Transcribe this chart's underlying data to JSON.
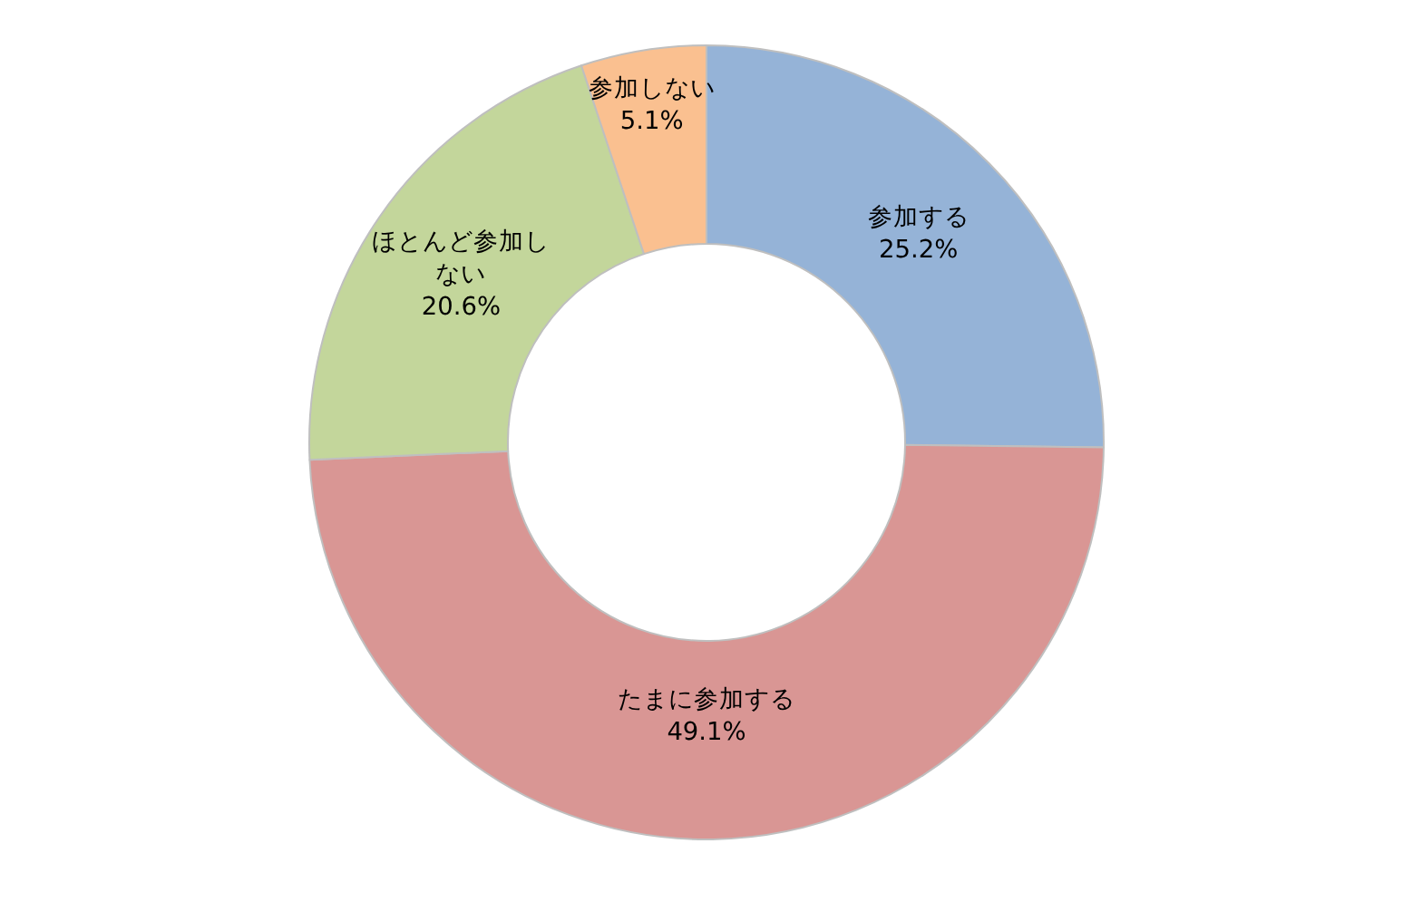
{
  "chart_data": {
    "type": "donut",
    "categories": [
      "参加する",
      "たまに参加する",
      "ほとんど参加しない",
      "参加しない"
    ],
    "values": [
      25.2,
      49.1,
      20.6,
      5.1
    ],
    "colors": [
      "#95b3d7",
      "#d99694",
      "#c3d69b",
      "#fac090"
    ],
    "value_labels": [
      "25.2%",
      "49.1%",
      "20.6%",
      "5.1%"
    ],
    "legend": false
  }
}
